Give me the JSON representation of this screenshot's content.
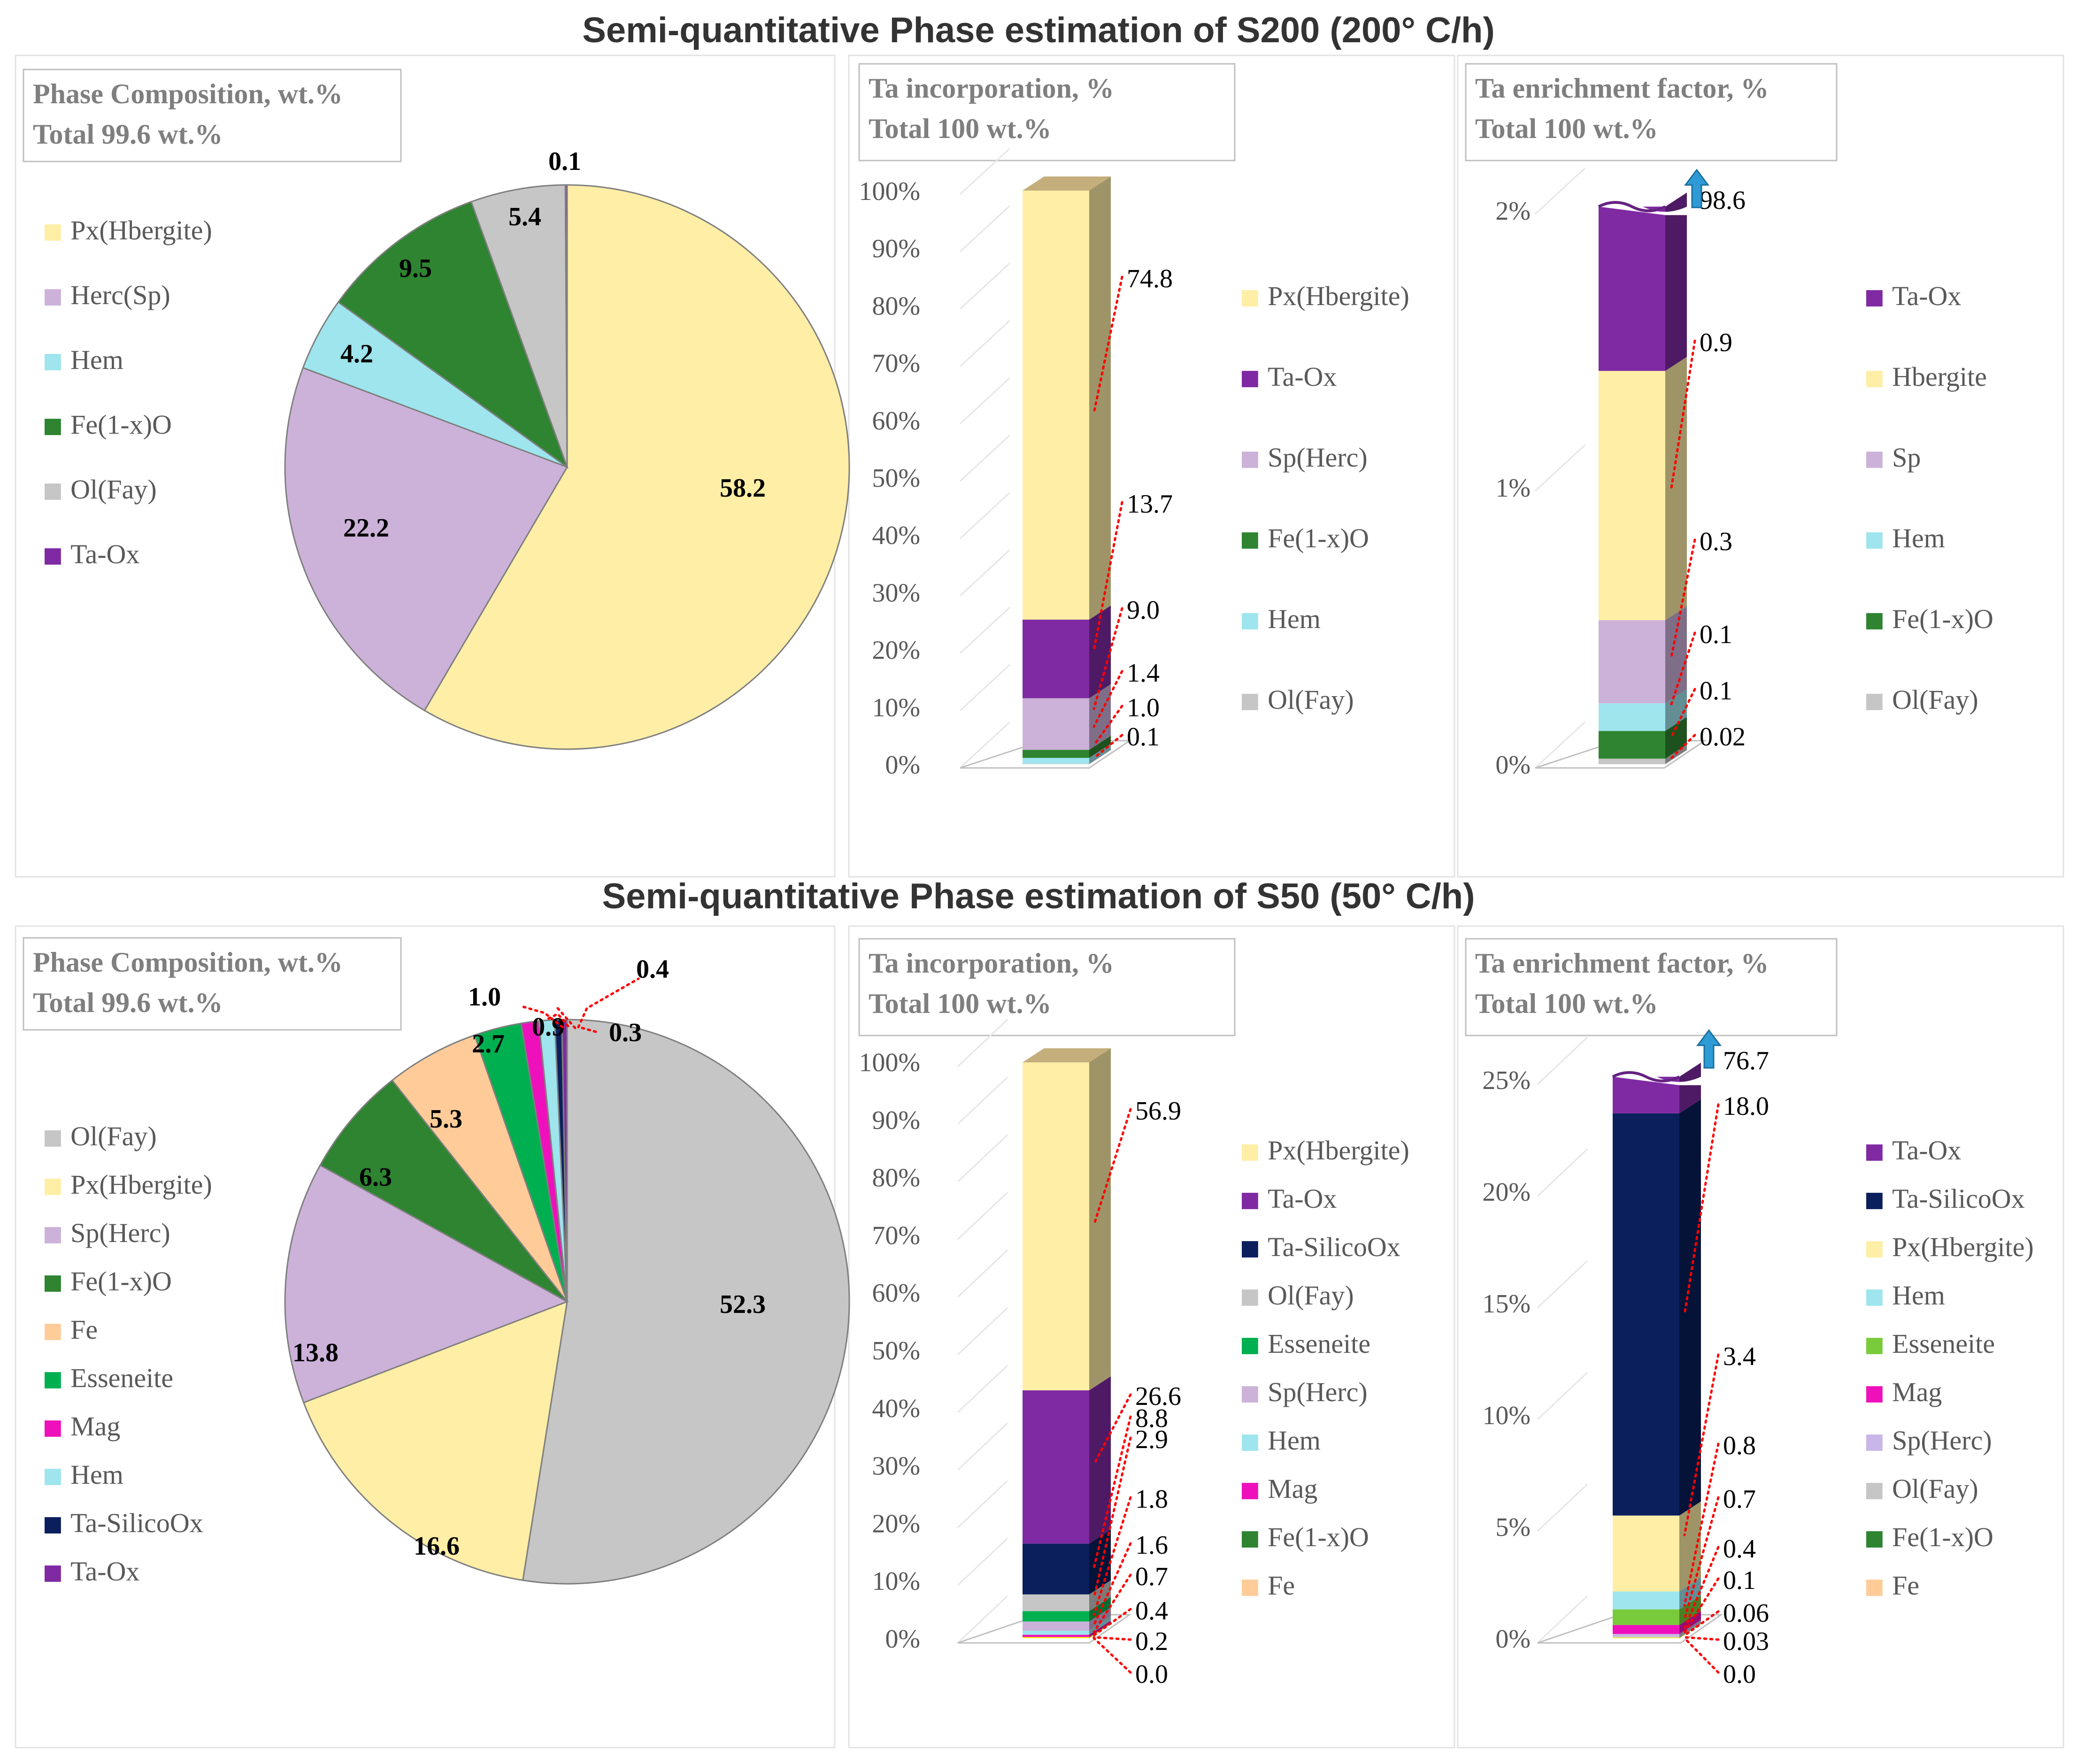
{
  "titles": {
    "s200": "Semi-quantitative Phase estimation of S200 (200° C/h)",
    "s50": "Semi-quantitative Phase estimation of S50 (50° C/h)"
  },
  "colors": {
    "Px(Hbergite)": "#FFEEA6",
    "Hbergite": "#FFEEA6",
    "Herc(Sp)": "#CCB2D9",
    "Sp(Herc)": "#CCB2D9",
    "Sp": "#CCB2D9",
    "Hem": "#9EE5EE",
    "Fe(1-x)O": "#2E8431",
    "Ol(Fay)": "#C6C6C6",
    "Ta-Ox": "#7F2AA3",
    "Ta-SilicoOx": "#0A1F5C",
    "Fe": "#FFCC99",
    "Esseneite": "#00B050",
    "Mag": "#EE11BB",
    "S50-Fe(1-x)O-bar": "#FFFF00",
    "S50-Esseneite-enr": "#7ACB3C",
    "S50-Sp-enr": "#C9B6E8"
  },
  "chart_data": [
    {
      "id": "s200-pie",
      "type": "pie",
      "box": [
        "Phase Composition, wt.%",
        "Total 99.6 wt.%"
      ],
      "legend": [
        "Px(Hbergite)",
        "Herc(Sp)",
        "Hem",
        "Fe(1-x)O",
        "Ol(Fay)",
        "Ta-Ox"
      ],
      "slices": [
        {
          "name": "Px(Hbergite)",
          "value": 58.2,
          "label": "58.2"
        },
        {
          "name": "Herc(Sp)",
          "value": 22.2,
          "label": "22.2"
        },
        {
          "name": "Hem",
          "value": 4.2,
          "label": "4.2"
        },
        {
          "name": "Fe(1-x)O",
          "value": 9.5,
          "label": "9.5"
        },
        {
          "name": "Ol(Fay)",
          "value": 5.4,
          "label": "5.4"
        },
        {
          "name": "Ta-Ox",
          "value": 0.1,
          "label": "0.1"
        }
      ]
    },
    {
      "id": "s200-inc",
      "type": "bar",
      "stacked": true,
      "box": [
        "Ta incorporation, %",
        "Total 100 wt.%"
      ],
      "yticks": [
        "0%",
        "10%",
        "20%",
        "30%",
        "40%",
        "50%",
        "60%",
        "70%",
        "80%",
        "90%",
        "100%"
      ],
      "ylim": [
        0,
        100
      ],
      "legend": [
        "Px(Hbergite)",
        "Ta-Ox",
        "Sp(Herc)",
        "Fe(1-x)O",
        "Hem",
        "Ol(Fay)"
      ],
      "segments": [
        {
          "name": "Ol(Fay)",
          "value": 0.1,
          "label": "0.1"
        },
        {
          "name": "Hem",
          "value": 1.0,
          "label": "1.0"
        },
        {
          "name": "Fe(1-x)O",
          "value": 1.4,
          "label": "1.4"
        },
        {
          "name": "Sp(Herc)",
          "value": 9.0,
          "label": "9.0"
        },
        {
          "name": "Ta-Ox",
          "value": 13.7,
          "label": "13.7"
        },
        {
          "name": "Px(Hbergite)",
          "value": 74.8,
          "label": "74.8"
        }
      ]
    },
    {
      "id": "s200-enr",
      "type": "bar",
      "stacked": true,
      "broken": true,
      "box": [
        "Ta enrichment factor, %",
        "Total 100 wt.%"
      ],
      "yticks": [
        "0%",
        "1%",
        "2%"
      ],
      "ylim": [
        0,
        2
      ],
      "legend": [
        "Ta-Ox",
        "Hbergite",
        "Sp",
        "Hem",
        "Fe(1-x)O",
        "Ol(Fay)"
      ],
      "segments": [
        {
          "name": "Ol(Fay)",
          "value": 0.02,
          "label": "0.02"
        },
        {
          "name": "Fe(1-x)O",
          "value": 0.1,
          "label": "0.1"
        },
        {
          "name": "Hem",
          "value": 0.1,
          "label": "0.1"
        },
        {
          "name": "Sp",
          "value": 0.3,
          "label": "0.3"
        },
        {
          "name": "Hbergite",
          "value": 0.9,
          "label": "0.9"
        },
        {
          "name": "Ta-Ox",
          "value": 98.6,
          "label": "98.6"
        }
      ]
    },
    {
      "id": "s50-pie",
      "type": "pie",
      "box": [
        "Phase Composition, wt.%",
        "Total 99.6 wt.%"
      ],
      "legend": [
        "Ol(Fay)",
        "Px(Hbergite)",
        "Sp(Herc)",
        "Fe(1-x)O",
        "Fe",
        "Esseneite",
        "Mag",
        "Hem",
        "Ta-SilicoOx",
        "Ta-Ox"
      ],
      "slices": [
        {
          "name": "Ol(Fay)",
          "value": 52.3,
          "label": "52.3"
        },
        {
          "name": "Px(Hbergite)",
          "value": 16.6,
          "label": "16.6"
        },
        {
          "name": "Sp(Herc)",
          "value": 13.8,
          "label": "13.8"
        },
        {
          "name": "Fe(1-x)O",
          "value": 6.3,
          "label": "6.3"
        },
        {
          "name": "Fe",
          "value": 5.3,
          "label": "5.3"
        },
        {
          "name": "Esseneite",
          "value": 2.7,
          "label": "2.7"
        },
        {
          "name": "Mag",
          "value": 1.0,
          "label": "1.0"
        },
        {
          "name": "Hem",
          "value": 0.9,
          "label": "0.9"
        },
        {
          "name": "Ta-SilicoOx",
          "value": 0.4,
          "label": "0.4"
        },
        {
          "name": "Ta-Ox",
          "value": 0.3,
          "label": "0.3"
        }
      ]
    },
    {
      "id": "s50-inc",
      "type": "bar",
      "stacked": true,
      "box": [
        "Ta incorporation, %",
        "Total 100 wt.%"
      ],
      "yticks": [
        "0%",
        "10%",
        "20%",
        "30%",
        "40%",
        "50%",
        "60%",
        "70%",
        "80%",
        "90%",
        "100%"
      ],
      "ylim": [
        0,
        100
      ],
      "legend": [
        "Px(Hbergite)",
        "Ta-Ox",
        "Ta-SilicoOx",
        "Ol(Fay)",
        "Esseneite",
        "Sp(Herc)",
        "Hem",
        "Mag",
        "Fe(1-x)O",
        "Fe"
      ],
      "segments": [
        {
          "name": "Fe",
          "value": 0.0,
          "label": "0.0"
        },
        {
          "name": "Fe(1-x)O",
          "value": 0.2,
          "label": "0.2"
        },
        {
          "name": "Mag",
          "value": 0.4,
          "label": "0.4"
        },
        {
          "name": "Hem",
          "value": 0.7,
          "label": "0.7"
        },
        {
          "name": "Sp(Herc)",
          "value": 1.6,
          "label": "1.6"
        },
        {
          "name": "Esseneite",
          "value": 1.8,
          "label": "1.8"
        },
        {
          "name": "Ol(Fay)",
          "value": 2.9,
          "label": "2.9"
        },
        {
          "name": "Ta-SilicoOx",
          "value": 8.8,
          "label": "8.8"
        },
        {
          "name": "Ta-Ox",
          "value": 26.6,
          "label": "26.6"
        },
        {
          "name": "Px(Hbergite)",
          "value": 56.9,
          "label": "56.9"
        }
      ]
    },
    {
      "id": "s50-enr",
      "type": "bar",
      "stacked": true,
      "broken": true,
      "box": [
        "Ta enrichment factor, %",
        "Total 100 wt.%"
      ],
      "yticks": [
        "0%",
        "5%",
        "10%",
        "15%",
        "20%",
        "25%"
      ],
      "ylim": [
        0,
        25
      ],
      "legend": [
        "Ta-Ox",
        "Ta-SilicoOx",
        "Px(Hbergite)",
        "Hem",
        "Esseneite",
        "Mag",
        "Sp(Herc)",
        "Ol(Fay)",
        "Fe(1-x)O",
        "Fe"
      ],
      "segments": [
        {
          "name": "Fe",
          "value": 0.0,
          "label": "0.0"
        },
        {
          "name": "Fe(1-x)O",
          "value": 0.03,
          "label": "0.03"
        },
        {
          "name": "Ol(Fay)",
          "value": 0.06,
          "label": "0.06"
        },
        {
          "name": "Sp(Herc)",
          "value": 0.1,
          "label": "0.1"
        },
        {
          "name": "Mag",
          "value": 0.4,
          "label": "0.4"
        },
        {
          "name": "Esseneite",
          "value": 0.7,
          "label": "0.7"
        },
        {
          "name": "Hem",
          "value": 0.8,
          "label": "0.8"
        },
        {
          "name": "Px(Hbergite)",
          "value": 3.4,
          "label": "3.4"
        },
        {
          "name": "Ta-SilicoOx",
          "value": 18.0,
          "label": "18.0"
        },
        {
          "name": "Ta-Ox",
          "value": 76.7,
          "label": "76.7"
        }
      ]
    }
  ]
}
